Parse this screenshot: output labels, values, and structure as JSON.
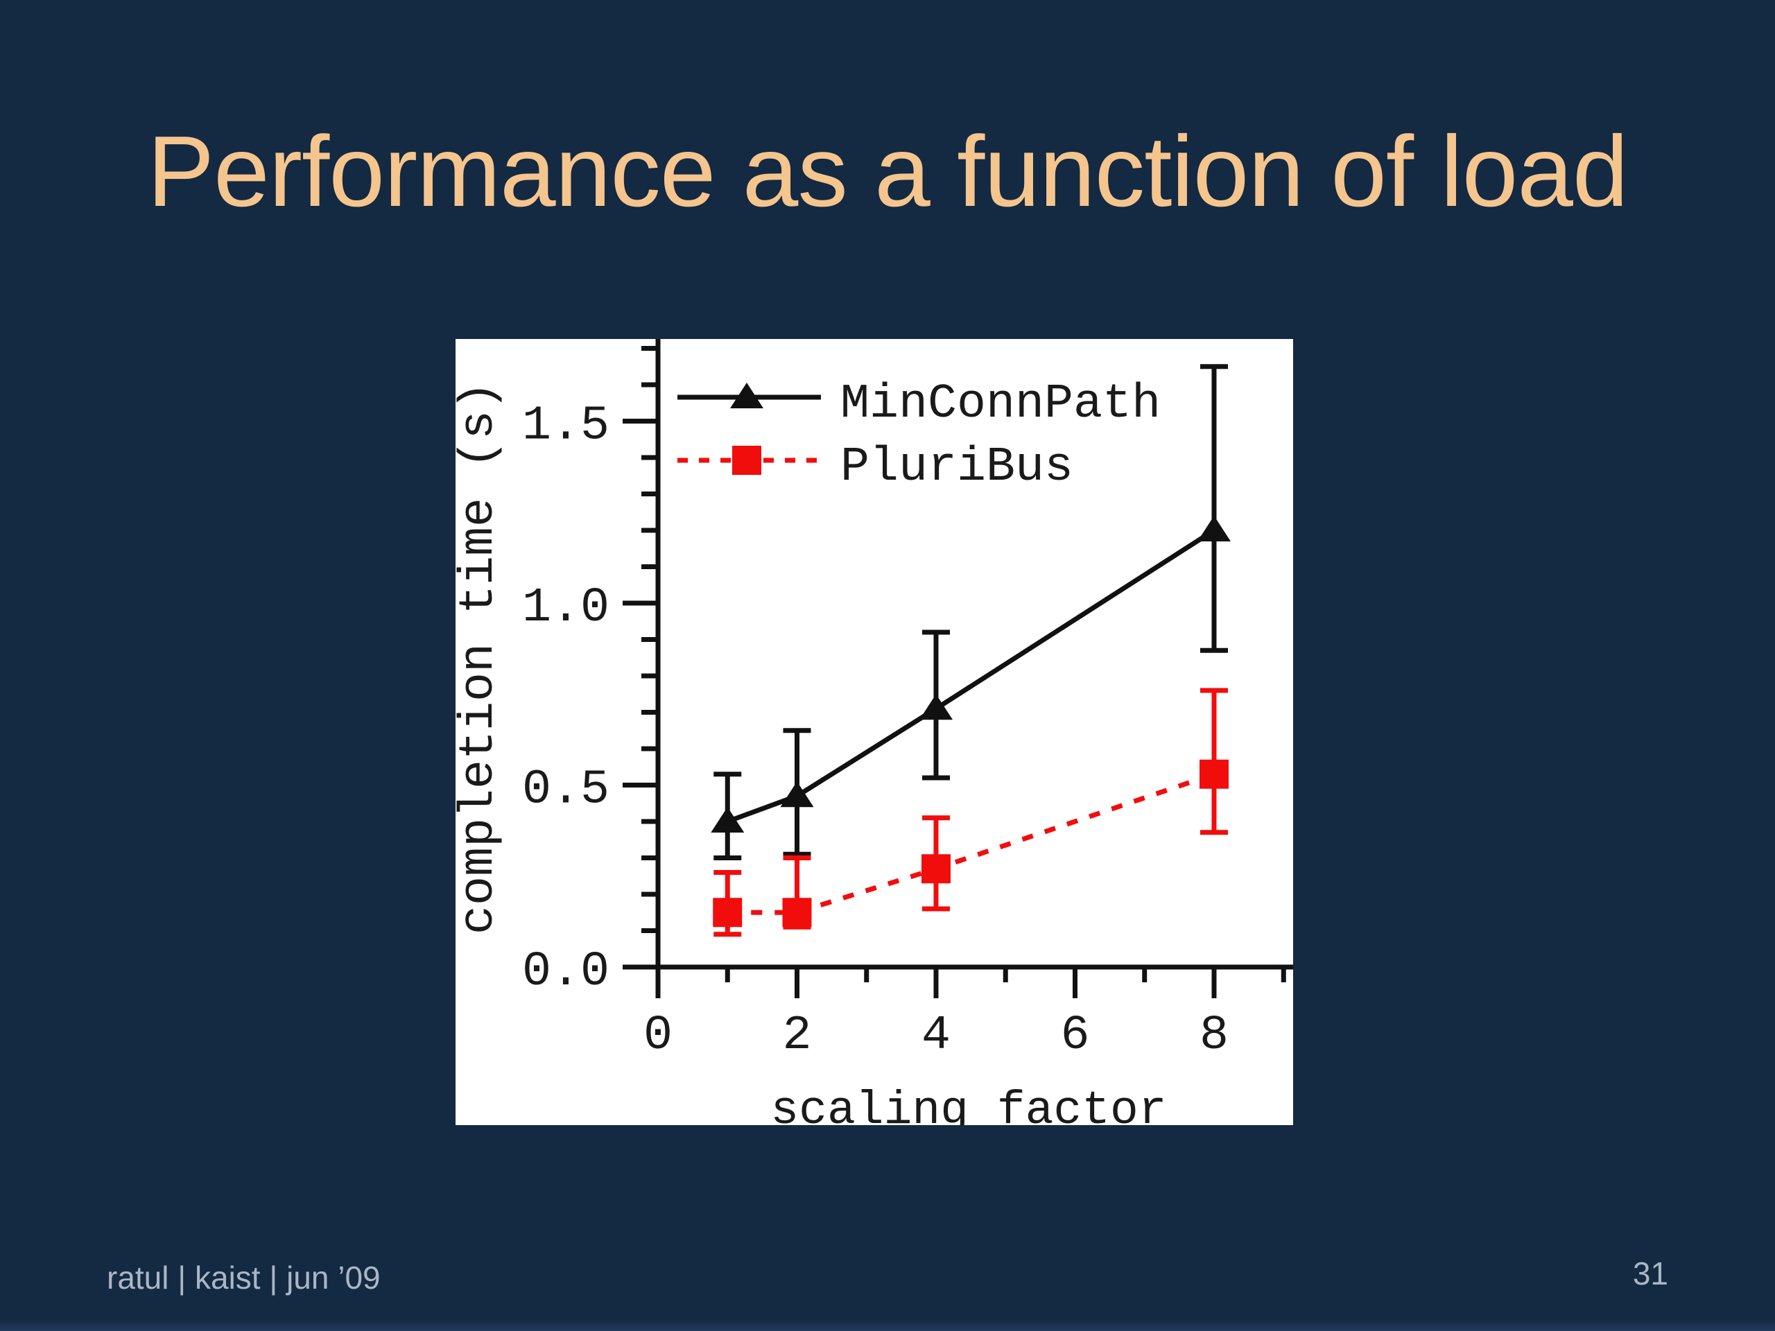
{
  "slide": {
    "title": "Performance as a function of load",
    "footer_left": "ratul | kaist | jun ’09",
    "page_number": "31"
  },
  "theme": {
    "background": "#142942",
    "bottom_strip": "#223a5c",
    "title_color": "#f5c58e",
    "footer_color": "#a9b6c6",
    "chart_background": "#ffffff",
    "chart_text_color": "#1a1a1a",
    "axis_color": "#111111"
  },
  "chart_data": {
    "type": "line",
    "title": "",
    "xlabel": "scaling factor",
    "ylabel": "completion time (s)",
    "xlim": [
      0,
      9.1
    ],
    "ylim": [
      0,
      1.72
    ],
    "grid": false,
    "legend_position": "top-left-inside",
    "x_major_ticks": [
      0,
      2,
      4,
      6,
      8
    ],
    "x_minor_ticks": [
      1,
      3,
      5,
      7,
      9
    ],
    "y_major_ticks": [
      0.0,
      0.5,
      1.0,
      1.5
    ],
    "y_minor_tick_step": 0.1,
    "series": [
      {
        "name": "MinConnPath",
        "color": "#111111",
        "line_style": "solid",
        "marker": "triangle",
        "x": [
          1,
          2,
          4,
          8
        ],
        "y": [
          0.4,
          0.47,
          0.71,
          1.2
        ],
        "err_low": [
          0.3,
          0.31,
          0.52,
          0.87
        ],
        "err_high": [
          0.53,
          0.65,
          0.92,
          1.65
        ]
      },
      {
        "name": "PluriBus",
        "color": "#f20d0d",
        "line_style": "dashed",
        "marker": "square",
        "x": [
          1,
          2,
          4,
          8
        ],
        "y": [
          0.15,
          0.15,
          0.27,
          0.53
        ],
        "err_low": [
          0.09,
          0.11,
          0.16,
          0.37
        ],
        "err_high": [
          0.26,
          0.3,
          0.41,
          0.76
        ]
      }
    ]
  }
}
